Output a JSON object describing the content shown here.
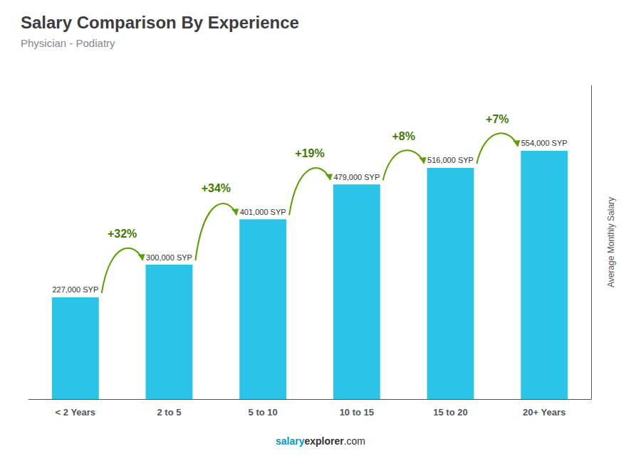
{
  "chart_data": {
    "type": "bar",
    "title": "Salary Comparison By Experience",
    "subtitle": "Physician - Podiatry",
    "ylabel": "Average Monthly Salary",
    "categories": [
      "< 2 Years",
      "2 to 5",
      "5 to 10",
      "10 to 15",
      "15 to 20",
      "20+ Years"
    ],
    "values": [
      227000,
      300000,
      401000,
      479000,
      516000,
      554000
    ],
    "value_labels": [
      "227,000 SYP",
      "300,000 SYP",
      "401,000 SYP",
      "479,000 SYP",
      "516,000 SYP",
      "554,000 SYP"
    ],
    "data_labels": true,
    "annotations": [
      "+32%",
      "+34%",
      "+19%",
      "+8%",
      "+7%"
    ],
    "footer": [
      "salary",
      "explorer",
      ".com"
    ],
    "color": "#29C4E8",
    "ylim": [
      0,
      700000
    ],
    "grid": false,
    "tick_labels": "x"
  }
}
